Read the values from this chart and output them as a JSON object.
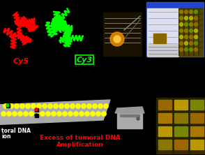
{
  "background_color": "#000000",
  "cy5_label": "Cy5",
  "cy3_label": "Cy3",
  "cy5_color": "#ff0000",
  "cy3_color": "#00ff00",
  "amplification_text_line1": "Excess of tumoral DNA",
  "amplification_text_line2": "Amplification",
  "amplification_color": "#ff0000",
  "tumoral_dna_text1": "toral DNA",
  "tumoral_dna_text2": "ion",
  "yellow_dot_color": "#ffff00"
}
